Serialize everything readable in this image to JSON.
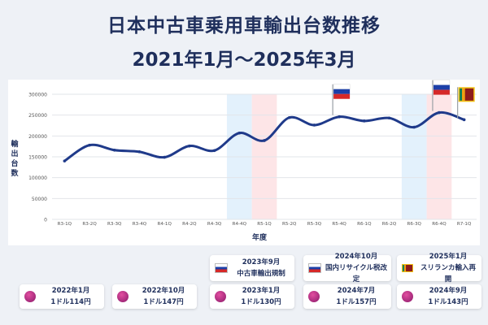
{
  "title_line1": "日本中古車乗用車輸出台数推移",
  "title_line2": "2021年1月～2025年3月",
  "chart_data": {
    "type": "line",
    "categories": [
      "R3-1Q",
      "R3-2Q",
      "R3-3Q",
      "R3-4Q",
      "R4-1Q",
      "R4-2Q",
      "R4-3Q",
      "R4-4Q",
      "R5-1Q",
      "R5-2Q",
      "R5-3Q",
      "R5-4Q",
      "R6-1Q",
      "R6-2Q",
      "R6-3Q",
      "R6-4Q",
      "R7-1Q"
    ],
    "values": [
      140000,
      178000,
      166000,
      162000,
      149000,
      176000,
      165000,
      207000,
      189000,
      244000,
      226000,
      246000,
      236000,
      243000,
      221000,
      256000,
      239000
    ],
    "xlabel": "年度",
    "ylabel": "輸出台数",
    "ylim": [
      0,
      300000
    ],
    "yticks": [
      0,
      50000,
      100000,
      150000,
      200000,
      250000,
      300000
    ],
    "line_color": "#1f3a8a",
    "grid": true,
    "highlights": [
      {
        "range": [
          "R4-4Q",
          "R4-4Q"
        ],
        "color": "#e3f1fc"
      },
      {
        "range": [
          "R5-1Q",
          "R5-1Q"
        ],
        "color": "#fde5e7"
      },
      {
        "range": [
          "R6-3Q",
          "R6-3Q"
        ],
        "color": "#e3f1fc"
      },
      {
        "range": [
          "R6-4Q",
          "R6-4Q"
        ],
        "color": "#fde5e7"
      }
    ],
    "flags": [
      {
        "at": "R5-4Q",
        "flag": "russia-flag"
      },
      {
        "at": "R6-4Q",
        "flag": "russia-flag"
      },
      {
        "at": "R7-1Q",
        "flag": "sri-lanka-flag"
      }
    ]
  },
  "events": [
    {
      "icon": "russia-flag-icon",
      "line1": "2023年9月",
      "line2": "中古車輸出規制"
    },
    {
      "icon": "russia-flag-icon",
      "line1": "2024年10月",
      "line2": "国内リサイクル税改定"
    },
    {
      "icon": "sri-lanka-flag-icon",
      "line1": "2025年1月",
      "line2": "スリランカ輸入再開"
    }
  ],
  "rates": [
    {
      "icon": "currency-icon",
      "line1": "2022年1月",
      "line2": "1ドル114円"
    },
    {
      "icon": "currency-icon",
      "line1": "2022年10月",
      "line2": "1ドル147円"
    },
    {
      "icon": "currency-icon",
      "line1": "2023年1月",
      "line2": "1ドル130円"
    },
    {
      "icon": "currency-icon",
      "line1": "2024年7月",
      "line2": "1ドル157円"
    },
    {
      "icon": "currency-icon",
      "line1": "2024年9月",
      "line2": "1ドル143円"
    }
  ]
}
